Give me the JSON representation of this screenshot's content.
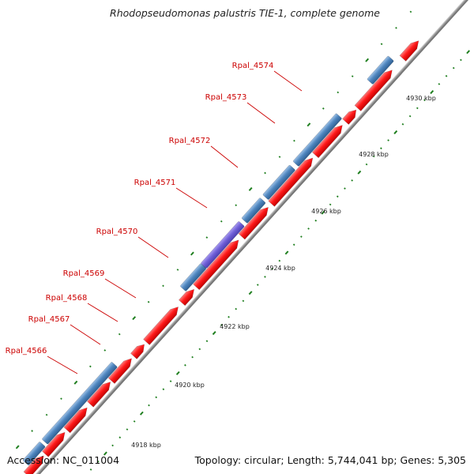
{
  "title": "Rhodopseudomonas palustris TIE-1, complete genome",
  "accession": "Accession: NC_011004",
  "summary": "Topology: circular; Length: 5,744,041 bp; Genes: 5,305",
  "colors": {
    "forward": "#ff0000",
    "reverse": "#4f86bf",
    "highlight": "#7060d8",
    "backbone": "#888888",
    "ticks": "#1f7f1f",
    "label": "#cc0000"
  },
  "gene_labels": [
    "Rpal_4566",
    "Rpal_4567",
    "Rpal_4568",
    "Rpal_4569",
    "Rpal_4570",
    "Rpal_4571",
    "Rpal_4572",
    "Rpal_4573",
    "Rpal_4574"
  ],
  "tick_labels": [
    "4918 kbp",
    "4920 kbp",
    "4922 kbp",
    "4924 kbp",
    "4926 kbp",
    "4928 kbp",
    "4930 kbp"
  ]
}
